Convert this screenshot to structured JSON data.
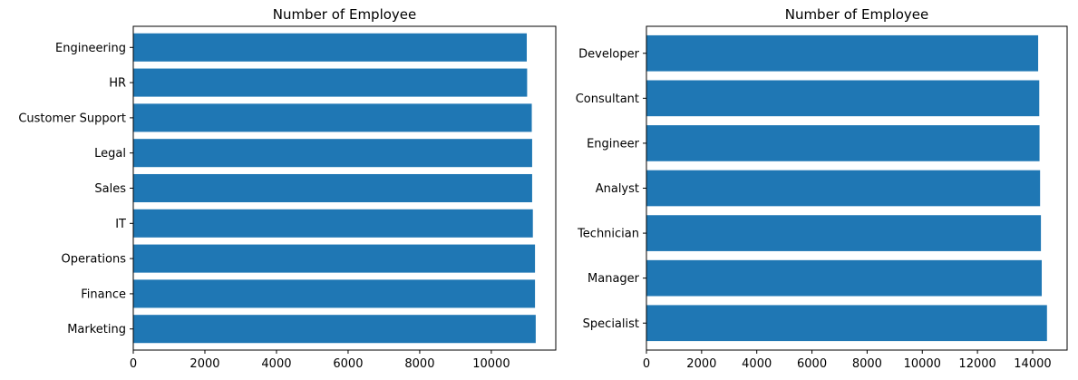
{
  "chart_data": [
    {
      "type": "bar",
      "orientation": "horizontal",
      "title": "Number of Employee",
      "xlabel": "",
      "ylabel": "",
      "categories": [
        "Engineering",
        "HR",
        "Customer Support",
        "Legal",
        "Sales",
        "IT",
        "Operations",
        "Finance",
        "Marketing"
      ],
      "values": [
        10990,
        11000,
        11130,
        11140,
        11140,
        11160,
        11220,
        11220,
        11240
      ],
      "xlim": [
        0,
        11800
      ],
      "xticks": [
        0,
        2000,
        4000,
        6000,
        8000,
        10000
      ],
      "xtick_labels": [
        "0",
        "2000",
        "4000",
        "6000",
        "8000",
        "10000"
      ],
      "grid": false,
      "bar_color": "#1f77b4"
    },
    {
      "type": "bar",
      "orientation": "horizontal",
      "title": "Number of Employee",
      "xlabel": "",
      "ylabel": "",
      "categories": [
        "Developer",
        "Consultant",
        "Engineer",
        "Analyst",
        "Technician",
        "Manager",
        "Specialist"
      ],
      "values": [
        14200,
        14240,
        14250,
        14270,
        14300,
        14330,
        14520
      ],
      "xlim": [
        0,
        15250
      ],
      "xticks": [
        0,
        2000,
        4000,
        6000,
        8000,
        10000,
        12000,
        14000
      ],
      "xtick_labels": [
        "0",
        "2000",
        "4000",
        "6000",
        "8000",
        "10000",
        "12000",
        "14000"
      ],
      "grid": false,
      "bar_color": "#1f77b4"
    }
  ]
}
